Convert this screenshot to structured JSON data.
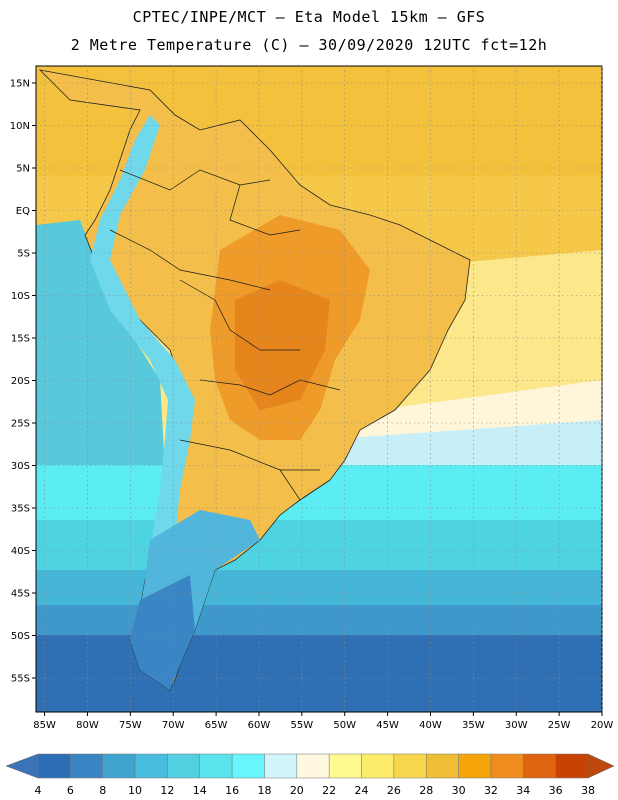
{
  "header": {
    "line1": "CPTEC/INPE/MCT –  Eta Model 15km – GFS",
    "line2": "2 Metre Temperature (C) – 30/09/2020 12UTC fct=12h"
  },
  "map": {
    "lat_labels": [
      "15N",
      "10N",
      "5N",
      "EQ",
      "5S",
      "10S",
      "15S",
      "20S",
      "25S",
      "30S",
      "35S",
      "40S",
      "45S",
      "50S",
      "55S"
    ],
    "lat_values": [
      15,
      10,
      5,
      0,
      -5,
      -10,
      -15,
      -20,
      -25,
      -30,
      -35,
      -40,
      -45,
      -50,
      -55
    ],
    "lon_labels": [
      "85W",
      "80W",
      "75W",
      "70W",
      "65W",
      "60W",
      "55W",
      "50W",
      "45W",
      "40W",
      "35W",
      "30W",
      "25W",
      "20W"
    ],
    "lon_values": [
      -85,
      -80,
      -75,
      -70,
      -65,
      -60,
      -55,
      -50,
      -45,
      -40,
      -35,
      -30,
      -25,
      -20
    ],
    "lon_range": [
      -86,
      -20
    ],
    "lat_range": [
      -59,
      17
    ]
  },
  "colorbar": {
    "labels": [
      "4",
      "6",
      "8",
      "10",
      "12",
      "14",
      "16",
      "18",
      "20",
      "22",
      "24",
      "26",
      "28",
      "30",
      "32",
      "34",
      "36",
      "38"
    ],
    "colors": [
      "#2d6db5",
      "#3a86c4",
      "#40a4d0",
      "#48bcdc",
      "#52cfe0",
      "#5ae3ec",
      "#66f6fb",
      "#d2f5fb",
      "#fff7e0",
      "#fffa90",
      "#fdec6a",
      "#f8d64c",
      "#efbe34",
      "#f5a40a",
      "#ef8c1e",
      "#df6410",
      "#c84206"
    ],
    "under_color": "#3a74b8",
    "over_color": "#c0470c"
  },
  "colors": {
    "ocean_cool": "#58c8dc",
    "ocean_cold": "#3478b8",
    "land_hot": "#ef9b2a",
    "tropical_sea": "#f6c84a"
  }
}
